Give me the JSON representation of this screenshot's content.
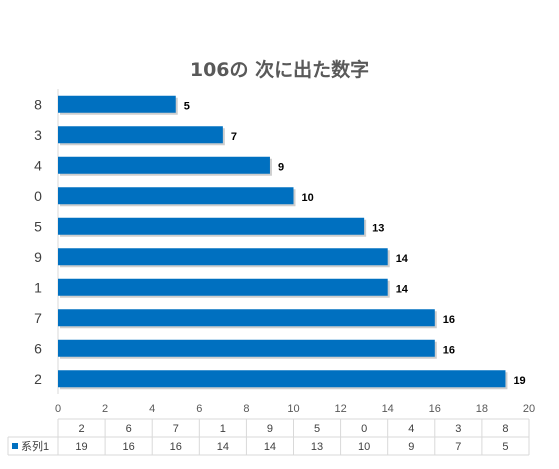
{
  "chart_data": {
    "type": "bar",
    "orientation": "horizontal",
    "title": "106の 次に出た数字",
    "categories": [
      "8",
      "3",
      "4",
      "0",
      "5",
      "9",
      "1",
      "7",
      "6",
      "2"
    ],
    "series": [
      {
        "name": "系列1",
        "values": [
          5,
          7,
          9,
          10,
          13,
          14,
          14,
          16,
          16,
          19
        ],
        "color": "#0070C0"
      }
    ],
    "xlim": [
      0,
      20
    ],
    "xticks": [
      0,
      2,
      4,
      6,
      8,
      10,
      12,
      14,
      16,
      18,
      20
    ],
    "grid": false,
    "data_table": {
      "categories": [
        "2",
        "6",
        "7",
        "1",
        "9",
        "5",
        "0",
        "4",
        "3",
        "8"
      ],
      "values": [
        19,
        16,
        16,
        14,
        14,
        13,
        10,
        9,
        7,
        5
      ],
      "legend_key": "系列1"
    }
  }
}
